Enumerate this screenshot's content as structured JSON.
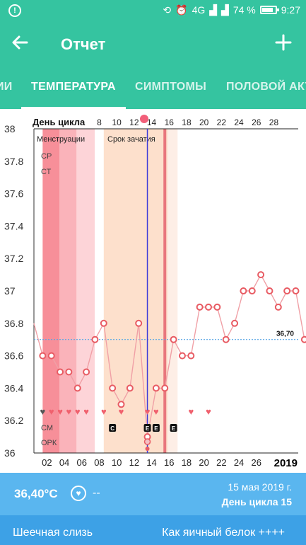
{
  "status_bar": {
    "time": "9:27",
    "battery": "74 %",
    "network": "4G",
    "notification_count": "1"
  },
  "app_bar": {
    "title": "Отчет",
    "back_icon": "arrow-left-icon",
    "add_icon": "plus-icon"
  },
  "tabs": [
    {
      "label": "ИИ",
      "active": false
    },
    {
      "label": "ТЕМПЕРАТУРА",
      "active": true
    },
    {
      "label": "СИМПТОМЫ",
      "active": false
    },
    {
      "label": "ПОЛОВОЙ АКТ",
      "active": false
    }
  ],
  "chart": {
    "day_header": "День цикла",
    "top_ticks": [
      "8",
      "10",
      "12",
      "14",
      "16",
      "18",
      "20",
      "22",
      "24",
      "26",
      "28"
    ],
    "bottom_ticks": [
      "02",
      "04",
      "06",
      "08",
      "10",
      "12",
      "14",
      "16",
      "18",
      "20",
      "22",
      "24",
      "26"
    ],
    "year": "2019",
    "y_ticks": [
      "38",
      "37.8",
      "37.6",
      "37.4",
      "37.2",
      "37",
      "36.8",
      "36.6",
      "36.4",
      "36.2",
      "36"
    ],
    "bands": {
      "menstruation": "Менструации",
      "fertile": "Срок зачатия"
    },
    "row_labels": {
      "sr": "СР",
      "st": "СТ",
      "sm": "СМ",
      "opk": "ОРК"
    },
    "coverline_label": "36,70",
    "mucus_marks": [
      "C",
      "E",
      "E",
      "E"
    ]
  },
  "chart_data": {
    "type": "line",
    "xlabel": "День цикла",
    "ylim": [
      36,
      38
    ],
    "coverline": 36.7,
    "temperature": {
      "x": [
        0,
        1,
        2,
        3,
        4,
        5,
        6,
        7,
        8,
        9,
        10,
        11,
        12,
        13,
        14,
        15,
        16,
        17,
        18,
        19,
        20,
        21,
        22,
        23,
        24,
        25,
        26,
        27,
        28,
        29,
        30,
        31
      ],
      "y": [
        36.8,
        36.6,
        36.6,
        36.5,
        36.5,
        36.4,
        36.5,
        36.7,
        36.8,
        36.4,
        36.3,
        36.4,
        36.8,
        36.1,
        36.4,
        36.4,
        36.7,
        36.6,
        36.6,
        36.9,
        36.9,
        36.9,
        36.7,
        36.8,
        37.0,
        37.0,
        37.1,
        37.0,
        36.9,
        37.0,
        37.0,
        36.7
      ]
    },
    "menstruation_days": [
      1,
      6
    ],
    "fertile_days": [
      8,
      15
    ],
    "ovulation_day": 13,
    "selected_day": 15,
    "intercourse_days": [
      1,
      2,
      3,
      4,
      5,
      6,
      8,
      10,
      13,
      14,
      18,
      20
    ]
  },
  "readout": {
    "temperature": "36,40°C",
    "note": "--",
    "date": "15 мая 2019 г.",
    "cycle_day": "День цикла 15"
  },
  "mucus_row": {
    "label": "Шеечная слизь",
    "value": "Как яичный белок ++++"
  }
}
